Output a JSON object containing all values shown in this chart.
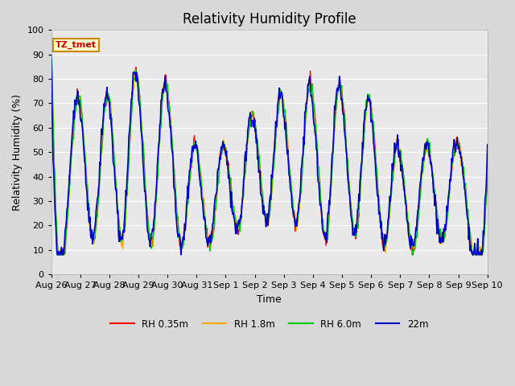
{
  "title": "Relativity Humidity Profile",
  "xlabel": "Time",
  "ylabel": "Relativity Humidity (%)",
  "ylim": [
    0,
    100
  ],
  "yticks": [
    0,
    10,
    20,
    30,
    40,
    50,
    60,
    70,
    80,
    90,
    100
  ],
  "xtick_labels": [
    "Aug 26",
    "Aug 27",
    "Aug 28",
    "Aug 29",
    "Aug 30",
    "Aug 31",
    "Sep 1",
    "Sep 2",
    "Sep 3",
    "Sep 4",
    "Sep 5",
    "Sep 6",
    "Sep 7",
    "Sep 8",
    "Sep 9",
    "Sep 10"
  ],
  "annotation_text": "TZ_tmet",
  "annotation_bg": "#ffffcc",
  "annotation_border": "#cc8800",
  "annotation_text_color": "#cc0000",
  "colors": {
    "RH 0.35m": "#ff0000",
    "RH 1.8m": "#ffaa00",
    "RH 6.0m": "#00cc00",
    "22m": "#0000cc"
  },
  "legend_labels": [
    "RH 0.35m",
    "RH 1.8m",
    "RH 6.0m",
    "22m"
  ],
  "bg_color": "#d8d8d8",
  "plot_bg_color": "#e8e8e8",
  "grid_color": "#ffffff",
  "title_fontsize": 12,
  "axis_fontsize": 9,
  "tick_fontsize": 8
}
